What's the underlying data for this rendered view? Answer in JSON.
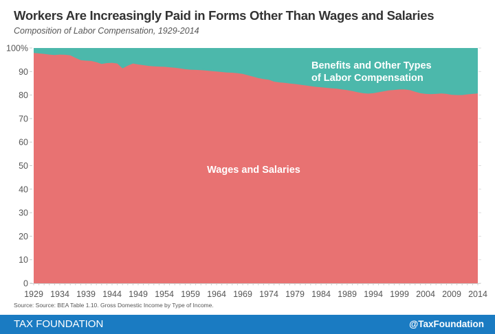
{
  "header": {
    "title": "Workers Are Increasingly Paid in Forms Other Than Wages and Salaries",
    "subtitle": "Composition of Labor Compensation, 1929-2014"
  },
  "source": "Source: Source: BEA Table 1.10. Gross Domestic Income by Type of Income.",
  "footer": {
    "brand": "TAX FOUNDATION",
    "handle": "@TaxFoundation"
  },
  "colors": {
    "wages": "#e87272",
    "benefits": "#4cb8ab",
    "footer": "#1a7bc2"
  },
  "chart_data": {
    "type": "area",
    "stacked": true,
    "title": "Workers Are Increasingly Paid in Forms Other Than Wages and Salaries",
    "subtitle": "Composition of Labor Compensation, 1929-2014",
    "xlabel": "",
    "ylabel": "",
    "xlim": [
      1929,
      2014
    ],
    "ylim": [
      0,
      100
    ],
    "grid": false,
    "legend": "none",
    "x_ticks": [
      "1929",
      "1934",
      "1939",
      "1944",
      "1949",
      "1954",
      "1959",
      "1964",
      "1969",
      "1974",
      "1979",
      "1984",
      "1989",
      "1994",
      "1999",
      "2004",
      "2009",
      "2014"
    ],
    "y_ticks": [
      "0",
      "10",
      "20",
      "30",
      "40",
      "50",
      "60",
      "70",
      "80",
      "90",
      "100%"
    ],
    "x": [
      1929,
      1930,
      1931,
      1932,
      1933,
      1934,
      1935,
      1936,
      1937,
      1938,
      1939,
      1940,
      1941,
      1942,
      1943,
      1944,
      1945,
      1946,
      1947,
      1948,
      1949,
      1950,
      1951,
      1952,
      1953,
      1954,
      1955,
      1956,
      1957,
      1958,
      1959,
      1960,
      1961,
      1962,
      1963,
      1964,
      1965,
      1966,
      1967,
      1968,
      1969,
      1970,
      1971,
      1972,
      1973,
      1974,
      1975,
      1976,
      1977,
      1978,
      1979,
      1980,
      1981,
      1982,
      1983,
      1984,
      1985,
      1986,
      1987,
      1988,
      1989,
      1990,
      1991,
      1992,
      1993,
      1994,
      1995,
      1996,
      1997,
      1998,
      1999,
      2000,
      2001,
      2002,
      2003,
      2004,
      2005,
      2006,
      2007,
      2008,
      2009,
      2010,
      2011,
      2012,
      2013,
      2014
    ],
    "series": [
      {
        "name": "Wages and Salaries",
        "label": "Wages and Salaries",
        "values": [
          97.9,
          97.7,
          97.5,
          97.2,
          97.0,
          97.2,
          97.1,
          96.9,
          95.8,
          94.8,
          94.6,
          94.5,
          94.0,
          93.2,
          93.6,
          93.7,
          93.4,
          91.3,
          92.5,
          93.4,
          93.0,
          92.7,
          92.4,
          92.2,
          92.1,
          92.0,
          91.8,
          91.6,
          91.3,
          91.0,
          90.8,
          90.7,
          90.6,
          90.4,
          90.2,
          90.0,
          89.8,
          89.6,
          89.5,
          89.3,
          89.0,
          88.4,
          87.8,
          87.2,
          86.8,
          86.5,
          85.7,
          85.4,
          85.2,
          84.9,
          84.7,
          84.4,
          84.1,
          83.8,
          83.5,
          83.3,
          83.1,
          82.9,
          82.7,
          82.4,
          82.1,
          81.7,
          81.2,
          80.8,
          80.6,
          80.8,
          81.2,
          81.6,
          82.0,
          82.2,
          82.4,
          82.4,
          82.1,
          81.4,
          80.8,
          80.5,
          80.4,
          80.5,
          80.7,
          80.5,
          80.1,
          80.0,
          80.0,
          80.3,
          80.5,
          80.7
        ]
      },
      {
        "name": "Benefits and Other Types of Labor Compensation",
        "label_line1": "Benefits and Other Types",
        "label_line2": "of Labor Compensation",
        "values": "remainder to 100"
      }
    ]
  }
}
